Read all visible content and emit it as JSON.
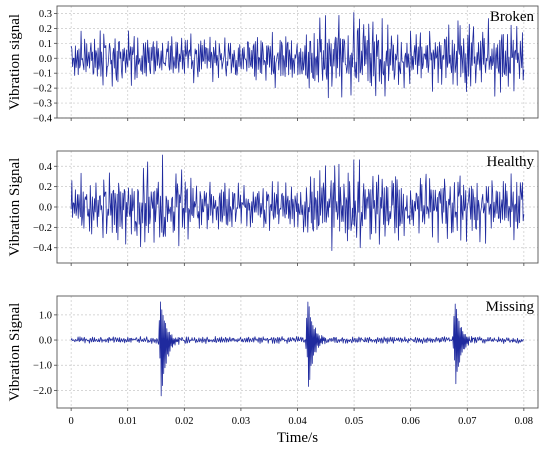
{
  "chart_data": [
    {
      "type": "line",
      "panel_label": "Broken",
      "ylabel": "Vibration signal",
      "ylim": [
        -0.4,
        0.35
      ],
      "yticks": [
        -0.4,
        -0.3,
        -0.2,
        -0.1,
        0.0,
        0.1,
        0.2,
        0.3
      ],
      "ytick_labels": [
        "−0.4",
        "−0.3",
        "−0.2",
        "−0.1",
        "0.0",
        "0.1",
        "0.2",
        "0.3"
      ],
      "xlim": [
        -0.0025,
        0.0825
      ],
      "xticks": [
        0,
        0.01,
        0.02,
        0.03,
        0.04,
        0.05,
        0.06,
        0.07,
        0.08
      ],
      "grid": true,
      "color": "#1f2a9e",
      "signal": {
        "x_start": 0.0,
        "x_end": 0.08,
        "samples": 640,
        "envelope": [
          [
            0.0,
            0.17
          ],
          [
            0.01,
            0.16
          ],
          [
            0.02,
            0.14
          ],
          [
            0.03,
            0.16
          ],
          [
            0.04,
            0.18
          ],
          [
            0.045,
            0.25
          ],
          [
            0.05,
            0.3
          ],
          [
            0.055,
            0.25
          ],
          [
            0.06,
            0.17
          ],
          [
            0.065,
            0.2
          ],
          [
            0.07,
            0.27
          ],
          [
            0.075,
            0.22
          ],
          [
            0.08,
            0.18
          ]
        ]
      }
    },
    {
      "type": "line",
      "panel_label": "Healthy",
      "ylabel": "Vibration Signal",
      "ylim": [
        -0.55,
        0.55
      ],
      "yticks": [
        -0.4,
        -0.2,
        0.0,
        0.2,
        0.4
      ],
      "ytick_labels": [
        "−0.4",
        "−0.2",
        "0.0",
        "0.2",
        "0.4"
      ],
      "xlim": [
        -0.0025,
        0.0825
      ],
      "xticks": [
        0,
        0.01,
        0.02,
        0.03,
        0.04,
        0.05,
        0.06,
        0.07,
        0.08
      ],
      "grid": true,
      "color": "#1f2a9e",
      "signal": {
        "x_start": 0.0,
        "x_end": 0.08,
        "samples": 640,
        "envelope": [
          [
            0.0,
            0.28
          ],
          [
            0.008,
            0.32
          ],
          [
            0.012,
            0.42
          ],
          [
            0.016,
            0.45
          ],
          [
            0.02,
            0.3
          ],
          [
            0.03,
            0.2
          ],
          [
            0.04,
            0.24
          ],
          [
            0.045,
            0.38
          ],
          [
            0.05,
            0.45
          ],
          [
            0.055,
            0.35
          ],
          [
            0.06,
            0.3
          ],
          [
            0.07,
            0.33
          ],
          [
            0.08,
            0.27
          ]
        ]
      }
    },
    {
      "type": "line",
      "panel_label": "Missing",
      "ylabel": "Vibration Signal",
      "ylim": [
        -2.7,
        1.75
      ],
      "yticks": [
        -2.0,
        -1.0,
        0.0,
        1.0
      ],
      "ytick_labels": [
        "−2.0",
        "−1.0",
        "0.0",
        "1.0"
      ],
      "xlim": [
        -0.0025,
        0.0825
      ],
      "xticks": [
        0,
        0.01,
        0.02,
        0.03,
        0.04,
        0.05,
        0.06,
        0.07,
        0.08
      ],
      "xtick_labels": [
        "0",
        "0.01",
        "0.02",
        "0.03",
        "0.04",
        "0.05",
        "0.06",
        "0.07",
        "0.08"
      ],
      "xlabel": "Time/s",
      "grid": true,
      "color": "#1f2a9e",
      "signal": {
        "x_start": 0.0,
        "x_end": 0.08,
        "samples": 720,
        "base_amplitude": 0.12,
        "impulses": [
          {
            "t": 0.0158,
            "peak": 1.6,
            "trough": -2.6
          },
          {
            "t": 0.0418,
            "peak": 1.6,
            "trough": -2.2
          },
          {
            "t": 0.0678,
            "peak": 1.6,
            "trough": -2.05
          }
        ]
      }
    }
  ]
}
